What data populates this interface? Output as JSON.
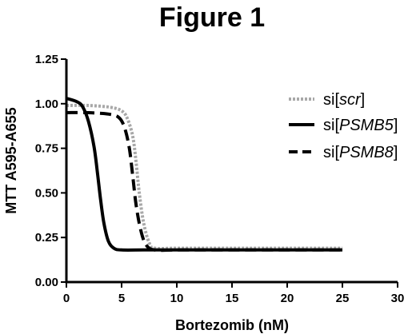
{
  "chart_data": {
    "type": "line",
    "title": "Figure 1",
    "xlabel": "Bortezomib (nM)",
    "ylabel": "MTT A595-A655",
    "xlim": [
      0,
      30
    ],
    "ylim": [
      0,
      1.25
    ],
    "x_ticks": [
      "0",
      "5",
      "10",
      "15",
      "20",
      "25",
      "30"
    ],
    "x_tick_values": [
      0,
      5,
      10,
      15,
      20,
      25,
      30
    ],
    "y_ticks": [
      "0.00",
      "0.25",
      "0.50",
      "0.75",
      "1.00",
      "1.25"
    ],
    "y_tick_values": [
      0,
      0.25,
      0.5,
      0.75,
      1.0,
      1.25
    ],
    "grid": false,
    "legend_position": "right",
    "series": [
      {
        "name": "si[scr]",
        "name_prefix": "si[",
        "name_gene": "scr",
        "name_suffix": "]",
        "color": "#a8a8a8",
        "style": "dotted-gray",
        "x": [
          0,
          2,
          4,
          5,
          5.5,
          6,
          6.3,
          6.6,
          7,
          7.5,
          8,
          10,
          15,
          20,
          25
        ],
        "y": [
          0.99,
          0.99,
          0.98,
          0.96,
          0.92,
          0.82,
          0.68,
          0.5,
          0.33,
          0.22,
          0.19,
          0.19,
          0.19,
          0.19,
          0.19
        ]
      },
      {
        "name": "si[PSMB5]",
        "name_prefix": "si[",
        "name_gene": "PSMB5",
        "name_suffix": "]",
        "color": "#000000",
        "style": "solid",
        "x": [
          0,
          1,
          1.5,
          2,
          2.5,
          2.8,
          3.1,
          3.4,
          3.8,
          4.3,
          5,
          7,
          10,
          15,
          20,
          25
        ],
        "y": [
          1.03,
          1.01,
          0.98,
          0.9,
          0.76,
          0.62,
          0.46,
          0.33,
          0.23,
          0.19,
          0.18,
          0.18,
          0.18,
          0.18,
          0.18,
          0.18
        ]
      },
      {
        "name": "si[PSMB8]",
        "name_prefix": "si[",
        "name_gene": "PSMB8",
        "name_suffix": "]",
        "color": "#000000",
        "style": "dashed",
        "x": [
          0,
          2,
          4,
          4.8,
          5.3,
          5.7,
          6.0,
          6.3,
          6.7,
          7.2,
          8,
          10,
          15,
          20,
          25
        ],
        "y": [
          0.95,
          0.95,
          0.94,
          0.92,
          0.86,
          0.75,
          0.6,
          0.44,
          0.3,
          0.21,
          0.18,
          0.18,
          0.18,
          0.18,
          0.18
        ]
      }
    ]
  }
}
